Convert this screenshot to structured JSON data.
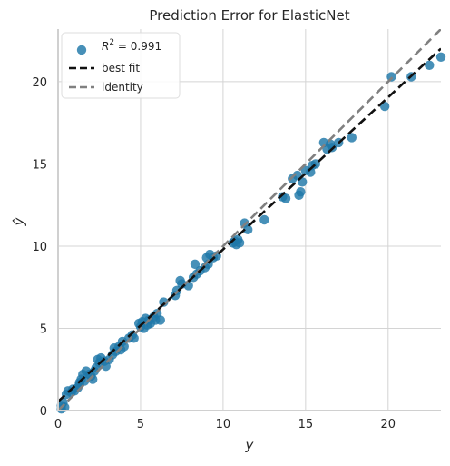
{
  "chart_data": {
    "type": "scatter",
    "title": "Prediction Error for ElasticNet",
    "xlabel": "y",
    "ylabel": "ŷ",
    "xlim": [
      0,
      23.2
    ],
    "ylim": [
      0,
      23.2
    ],
    "xticks": [
      0,
      5,
      10,
      15,
      20
    ],
    "yticks": [
      0,
      5,
      10,
      15,
      20
    ],
    "grid": true,
    "legend_position": "top-left",
    "legend": [
      {
        "label": "R",
        "superscript": "2",
        "suffix": " = 0.991",
        "kind": "marker"
      },
      {
        "label": "best fit",
        "kind": "dashed-line"
      },
      {
        "label": "identity",
        "kind": "dashed-line"
      }
    ],
    "colors": {
      "points": "#1f77a8",
      "best_fit": "#111111",
      "identity": "#808080",
      "grid": "#d4d4d4",
      "background": "#ffffff"
    },
    "best_fit": {
      "intercept": 0.55,
      "slope": 0.925
    },
    "identity": {
      "intercept": 0,
      "slope": 1
    },
    "points": [
      [
        0.2,
        0.1
      ],
      [
        0.2,
        0.3
      ],
      [
        0.4,
        0.2
      ],
      [
        0.3,
        0.5
      ],
      [
        0.5,
        1.0
      ],
      [
        0.6,
        1.2
      ],
      [
        0.8,
        1.1
      ],
      [
        0.9,
        1.3
      ],
      [
        1.0,
        1.2
      ],
      [
        1.2,
        1.4
      ],
      [
        1.3,
        1.7
      ],
      [
        1.4,
        1.9
      ],
      [
        1.3,
        1.6
      ],
      [
        1.6,
        1.8
      ],
      [
        1.5,
        2.2
      ],
      [
        1.7,
        2.4
      ],
      [
        1.9,
        2.2
      ],
      [
        2.0,
        2.1
      ],
      [
        2.2,
        2.4
      ],
      [
        2.1,
        1.9
      ],
      [
        2.3,
        2.6
      ],
      [
        2.4,
        3.1
      ],
      [
        2.6,
        3.2
      ],
      [
        2.5,
        2.9
      ],
      [
        2.8,
        3.0
      ],
      [
        2.9,
        2.7
      ],
      [
        3.1,
        3.1
      ],
      [
        3.3,
        3.4
      ],
      [
        3.4,
        3.8
      ],
      [
        3.5,
        3.6
      ],
      [
        3.7,
        3.9
      ],
      [
        3.8,
        3.7
      ],
      [
        4.0,
        3.9
      ],
      [
        3.9,
        4.2
      ],
      [
        4.3,
        4.4
      ],
      [
        4.5,
        4.6
      ],
      [
        4.6,
        4.4
      ],
      [
        4.9,
        5.3
      ],
      [
        5.0,
        5.1
      ],
      [
        5.1,
        5.4
      ],
      [
        5.2,
        5.0
      ],
      [
        5.3,
        5.6
      ],
      [
        5.4,
        5.2
      ],
      [
        5.5,
        5.5
      ],
      [
        5.6,
        5.3
      ],
      [
        5.8,
        5.7
      ],
      [
        5.9,
        5.5
      ],
      [
        6.0,
        5.9
      ],
      [
        6.2,
        5.5
      ],
      [
        6.4,
        6.6
      ],
      [
        7.1,
        7.0
      ],
      [
        7.2,
        7.3
      ],
      [
        7.4,
        7.9
      ],
      [
        7.5,
        7.7
      ],
      [
        7.9,
        7.6
      ],
      [
        8.2,
        8.1
      ],
      [
        8.3,
        8.9
      ],
      [
        8.4,
        8.3
      ],
      [
        8.6,
        8.5
      ],
      [
        8.9,
        8.7
      ],
      [
        9.0,
        9.3
      ],
      [
        9.1,
        8.9
      ],
      [
        9.2,
        9.5
      ],
      [
        9.4,
        9.3
      ],
      [
        9.6,
        9.4
      ],
      [
        10.6,
        10.2
      ],
      [
        10.7,
        10.3
      ],
      [
        10.8,
        10.1
      ],
      [
        10.9,
        10.4
      ],
      [
        11.0,
        10.2
      ],
      [
        11.3,
        11.4
      ],
      [
        11.5,
        11.0
      ],
      [
        12.5,
        11.6
      ],
      [
        13.6,
        13.0
      ],
      [
        13.8,
        12.9
      ],
      [
        14.2,
        14.1
      ],
      [
        14.5,
        14.3
      ],
      [
        14.6,
        13.1
      ],
      [
        14.7,
        13.3
      ],
      [
        14.8,
        13.9
      ],
      [
        15.0,
        14.6
      ],
      [
        15.3,
        14.5
      ],
      [
        15.4,
        14.9
      ],
      [
        15.6,
        15.0
      ],
      [
        16.1,
        16.3
      ],
      [
        16.3,
        15.9
      ],
      [
        16.5,
        16.2
      ],
      [
        16.6,
        16.0
      ],
      [
        17.0,
        16.3
      ],
      [
        17.8,
        16.6
      ],
      [
        19.8,
        18.5
      ],
      [
        20.2,
        20.3
      ],
      [
        21.4,
        20.3
      ],
      [
        22.5,
        21.0
      ],
      [
        23.2,
        21.5
      ]
    ]
  }
}
